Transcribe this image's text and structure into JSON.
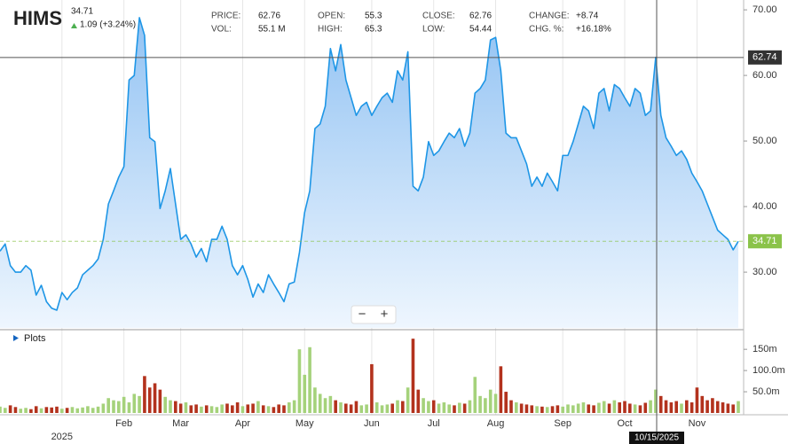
{
  "header": {
    "symbol": "HIMS",
    "last": "34.71",
    "change": "1.09 (+3.24%)"
  },
  "quote": [
    {
      "label": "PRICE:",
      "value": "62.76"
    },
    {
      "label": "VOL:",
      "value": "55.1 M"
    },
    {
      "label": "OPEN:",
      "value": "55.3"
    },
    {
      "label": "HIGH:",
      "value": "65.3"
    },
    {
      "label": "CLOSE:",
      "value": "62.76"
    },
    {
      "label": "LOW:",
      "value": "54.44"
    },
    {
      "label": "CHANGE:",
      "value": "+8.74"
    },
    {
      "label": "CHG. %:",
      "value": "+16.18%"
    }
  ],
  "zoom": [
    "−",
    "+"
  ],
  "chart_data": [
    {
      "type": "area",
      "color": "#1e96e6",
      "fill_top": "#93c3f3",
      "fill_bottom": "#eef6fe",
      "last_color": "#8bc34a",
      "crosshair_price": 62.74,
      "crosshair_date": "10/15/2025",
      "categories": [
        null,
        null,
        null,
        null,
        null,
        null,
        null,
        null,
        null,
        null,
        null,
        null,
        "2025",
        null,
        null,
        null,
        null,
        null,
        null,
        null,
        null,
        null,
        null,
        null,
        "Feb",
        null,
        null,
        null,
        null,
        null,
        null,
        null,
        null,
        null,
        null,
        "Mar",
        null,
        null,
        null,
        null,
        null,
        null,
        null,
        null,
        null,
        null,
        null,
        "Apr",
        null,
        null,
        null,
        null,
        null,
        null,
        null,
        null,
        null,
        null,
        null,
        "May",
        null,
        null,
        null,
        null,
        null,
        null,
        null,
        null,
        null,
        null,
        null,
        null,
        "Jun",
        null,
        null,
        null,
        null,
        null,
        null,
        null,
        null,
        null,
        null,
        null,
        "Jul",
        null,
        null,
        null,
        null,
        null,
        null,
        null,
        null,
        null,
        null,
        null,
        "Aug",
        null,
        null,
        null,
        null,
        null,
        null,
        null,
        null,
        null,
        null,
        null,
        null,
        "Sep",
        null,
        null,
        null,
        null,
        null,
        null,
        null,
        null,
        null,
        null,
        null,
        "Oct",
        null,
        null,
        null,
        null,
        null,
        null,
        null,
        null,
        null,
        null,
        null,
        null,
        null,
        "Nov",
        null,
        null,
        null,
        null,
        null,
        null,
        null,
        null
      ],
      "values": [
        33.2,
        34.3,
        31.0,
        30.0,
        30.0,
        31.0,
        30.3,
        26.5,
        28.0,
        25.5,
        24.5,
        24.2,
        26.9,
        25.8,
        26.9,
        27.6,
        29.6,
        30.3,
        31.0,
        32.0,
        35.0,
        40.4,
        42.4,
        44.5,
        46.1,
        59.3,
        60.0,
        68.8,
        66.1,
        50.5,
        49.9,
        39.7,
        42.4,
        45.8,
        40.4,
        35.0,
        35.7,
        34.3,
        32.3,
        33.6,
        31.6,
        35.0,
        35.0,
        37.0,
        35.0,
        31.0,
        29.6,
        31.0,
        28.9,
        26.2,
        28.2,
        26.9,
        29.6,
        28.2,
        26.9,
        25.5,
        28.2,
        28.5,
        33.0,
        39.1,
        42.4,
        51.9,
        52.6,
        55.3,
        64.1,
        60.7,
        64.7,
        59.3,
        56.6,
        53.9,
        55.3,
        55.9,
        53.9,
        55.3,
        56.6,
        57.3,
        55.9,
        60.7,
        59.3,
        63.6,
        43.1,
        42.4,
        44.5,
        49.9,
        47.8,
        48.5,
        49.9,
        51.2,
        50.5,
        51.9,
        49.2,
        51.2,
        57.3,
        58.0,
        59.3,
        65.4,
        65.8,
        60.7,
        51.2,
        50.5,
        50.5,
        48.5,
        46.5,
        43.1,
        44.5,
        43.1,
        45.1,
        43.8,
        42.4,
        47.8,
        47.8,
        49.9,
        52.6,
        55.3,
        54.6,
        51.9,
        57.3,
        58.0,
        54.6,
        58.6,
        58.0,
        56.6,
        55.3,
        58.0,
        57.3,
        53.9,
        54.6,
        62.76,
        53.9,
        50.5,
        49.2,
        47.8,
        48.5,
        47.2,
        45.1,
        43.8,
        42.4,
        40.4,
        38.4,
        36.4,
        35.7,
        35.0,
        33.4,
        34.71
      ],
      "ylim": [
        21.5,
        71.5
      ],
      "yticks": [
        {
          "value": 30,
          "label": "30.00"
        },
        {
          "value": 40,
          "label": "40.00"
        },
        {
          "value": 50,
          "label": "50.00"
        },
        {
          "value": 60,
          "label": "60.00"
        },
        {
          "value": 70,
          "label": "70.00"
        }
      ],
      "grid": true
    },
    {
      "type": "bar",
      "title": "Plots",
      "up_color": "#a5d27b",
      "down_color": "#b3321d",
      "values": [
        15,
        12,
        18,
        14,
        10,
        12,
        9,
        16,
        11,
        14,
        13,
        15,
        10,
        12,
        14,
        11,
        13,
        16,
        12,
        15,
        22,
        35,
        30,
        28,
        38,
        25,
        45,
        40,
        87,
        60,
        70,
        55,
        38,
        30,
        28,
        22,
        25,
        18,
        20,
        15,
        18,
        16,
        14,
        20,
        22,
        18,
        25,
        16,
        20,
        22,
        28,
        18,
        16,
        14,
        20,
        18,
        25,
        30,
        150,
        90,
        155,
        60,
        45,
        35,
        40,
        30,
        25,
        22,
        20,
        28,
        18,
        20,
        115,
        25,
        18,
        20,
        22,
        30,
        28,
        60,
        175,
        55,
        35,
        28,
        30,
        22,
        25,
        20,
        18,
        24,
        22,
        30,
        85,
        40,
        35,
        55,
        45,
        110,
        50,
        30,
        25,
        22,
        20,
        18,
        16,
        15,
        14,
        16,
        18,
        15,
        20,
        18,
        22,
        25,
        20,
        18,
        24,
        28,
        22,
        30,
        25,
        28,
        22,
        20,
        18,
        24,
        30,
        55.1,
        40,
        30,
        25,
        28,
        22,
        30,
        25,
        60,
        40,
        30,
        35,
        28,
        25,
        22,
        20,
        28
      ],
      "ylim": [
        0,
        190
      ],
      "yticks": [
        {
          "value": 50,
          "label": "50.0m"
        },
        {
          "value": 100,
          "label": "100.0m"
        },
        {
          "value": 150,
          "label": "150m"
        }
      ]
    }
  ]
}
